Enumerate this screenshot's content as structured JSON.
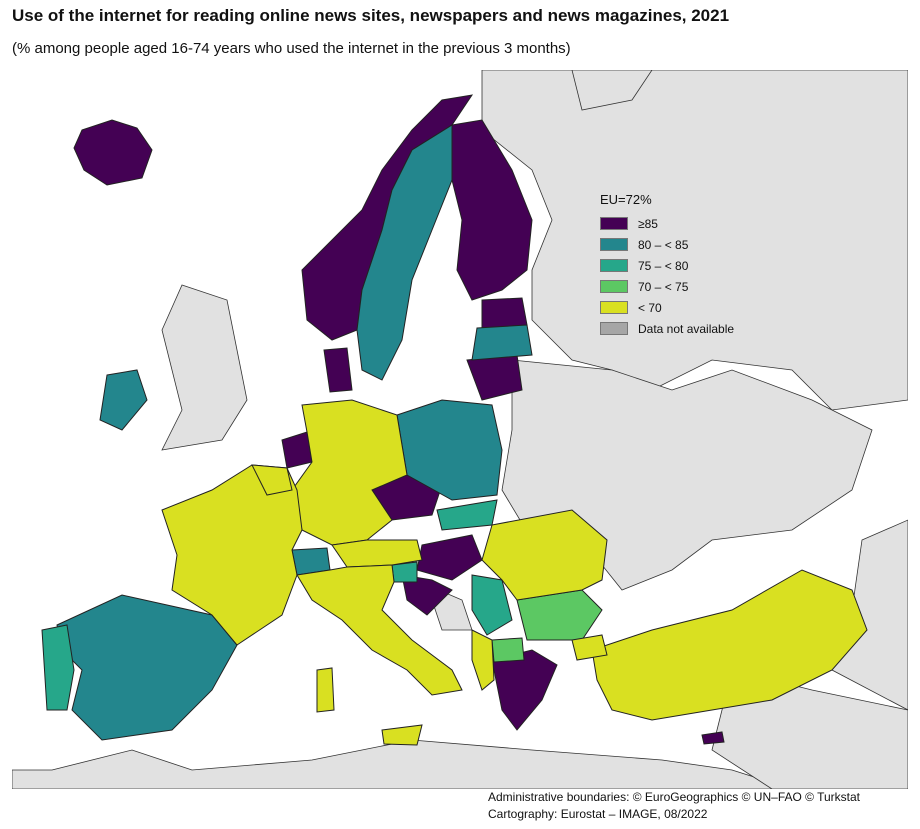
{
  "title": "Use of the internet for reading online news sites, newspapers and news magazines, 2021",
  "subtitle": "(% among people aged 16-74 years who used the internet in the previous 3 months)",
  "legend": {
    "title": "EU=72%",
    "items": [
      {
        "label": "≥85",
        "color": "#440154"
      },
      {
        "label": "80 – < 85",
        "color": "#23868d"
      },
      {
        "label": "75 – < 80",
        "color": "#26a78a"
      },
      {
        "label": "70 – < 75",
        "color": "#5cc863"
      },
      {
        "label": "< 70",
        "color": "#d9e021"
      },
      {
        "label": "Data not available",
        "color": "#a6a6a6"
      }
    ]
  },
  "colors": {
    "sea": "#ffffff",
    "non_member_land": "#e1e1e1",
    "border": "#222222"
  },
  "credits": {
    "line1": "Administrative boundaries: © EuroGeographics © UN–FAO © Turkstat",
    "line2": "Cartography: Eurostat – IMAGE, 08/2022"
  }
}
